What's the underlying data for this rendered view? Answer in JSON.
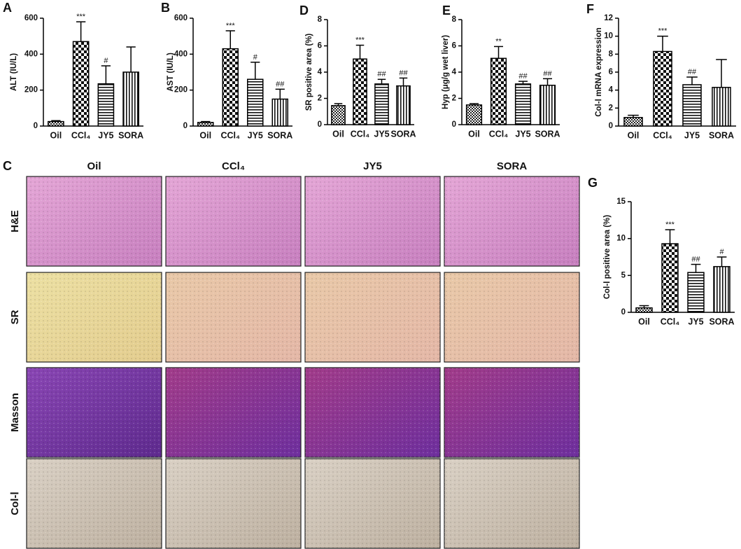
{
  "chart_data": [
    {
      "type": "bar",
      "panel": "A",
      "y_label": "ALT (IU/L)",
      "categories": [
        "Oil",
        "CCl₄",
        "JY5",
        "SORA"
      ],
      "values": [
        25,
        470,
        235,
        300
      ],
      "errors": [
        5,
        110,
        100,
        140
      ],
      "annotations": [
        null,
        "***",
        "#",
        null
      ],
      "ylim": [
        0,
        600
      ],
      "yticks": [
        0,
        200,
        400,
        600
      ]
    },
    {
      "type": "bar",
      "panel": "B",
      "y_label": "AST (IU/L)",
      "categories": [
        "Oil",
        "CCl₄",
        "JY5",
        "SORA"
      ],
      "values": [
        20,
        430,
        260,
        150
      ],
      "errors": [
        5,
        100,
        95,
        55
      ],
      "annotations": [
        null,
        "***",
        "#",
        "##"
      ],
      "ylim": [
        0,
        600
      ],
      "yticks": [
        0,
        200,
        400,
        600
      ]
    },
    {
      "type": "bar",
      "panel": "D",
      "y_label": "SR positive area (%)",
      "categories": [
        "Oil",
        "CCl₄",
        "JY5",
        "SORA"
      ],
      "values": [
        1.45,
        5.0,
        3.1,
        2.95
      ],
      "errors": [
        0.15,
        1.05,
        0.35,
        0.6
      ],
      "annotations": [
        null,
        "***",
        "##",
        "##"
      ],
      "ylim": [
        0,
        8
      ],
      "yticks": [
        0,
        2,
        4,
        6,
        8
      ]
    },
    {
      "type": "bar",
      "panel": "E",
      "y_label": "Hyp (μg/g wet liver)",
      "categories": [
        "Oil",
        "CCl₄",
        "JY5",
        "SORA"
      ],
      "values": [
        1.5,
        5.05,
        3.1,
        3.0
      ],
      "errors": [
        0.1,
        0.9,
        0.2,
        0.5
      ],
      "annotations": [
        null,
        "**",
        "##",
        "##"
      ],
      "ylim": [
        0,
        8
      ],
      "yticks": [
        0,
        2,
        4,
        6,
        8
      ]
    },
    {
      "type": "bar",
      "panel": "F",
      "y_label": "Col-Ⅰ mRNA expression",
      "categories": [
        "Oil",
        "CCl₄",
        "JY5",
        "SORA"
      ],
      "values": [
        0.95,
        8.3,
        4.6,
        4.3
      ],
      "errors": [
        0.25,
        1.7,
        0.85,
        3.1
      ],
      "annotations": [
        null,
        "***",
        "##",
        null
      ],
      "ylim": [
        0,
        12
      ],
      "yticks": [
        0,
        2,
        4,
        6,
        8,
        10,
        12
      ]
    },
    {
      "type": "bar",
      "panel": "G",
      "y_label": "Col-Ⅰ positive area (%)",
      "categories": [
        "Oil",
        "CCl₄",
        "JY5",
        "SORA"
      ],
      "values": [
        0.6,
        9.3,
        5.4,
        6.2
      ],
      "errors": [
        0.3,
        1.9,
        1.1,
        1.3
      ],
      "annotations": [
        null,
        "***",
        "##",
        "#"
      ],
      "ylim": [
        0,
        15
      ],
      "yticks": [
        0,
        5,
        10,
        15
      ]
    }
  ],
  "figure_panel": {
    "panel": "C",
    "columns": [
      "Oil",
      "CCl₄",
      "JY5",
      "SORA"
    ],
    "rows": [
      "H&E",
      "SR",
      "Masson",
      "Col-Ⅰ"
    ]
  }
}
